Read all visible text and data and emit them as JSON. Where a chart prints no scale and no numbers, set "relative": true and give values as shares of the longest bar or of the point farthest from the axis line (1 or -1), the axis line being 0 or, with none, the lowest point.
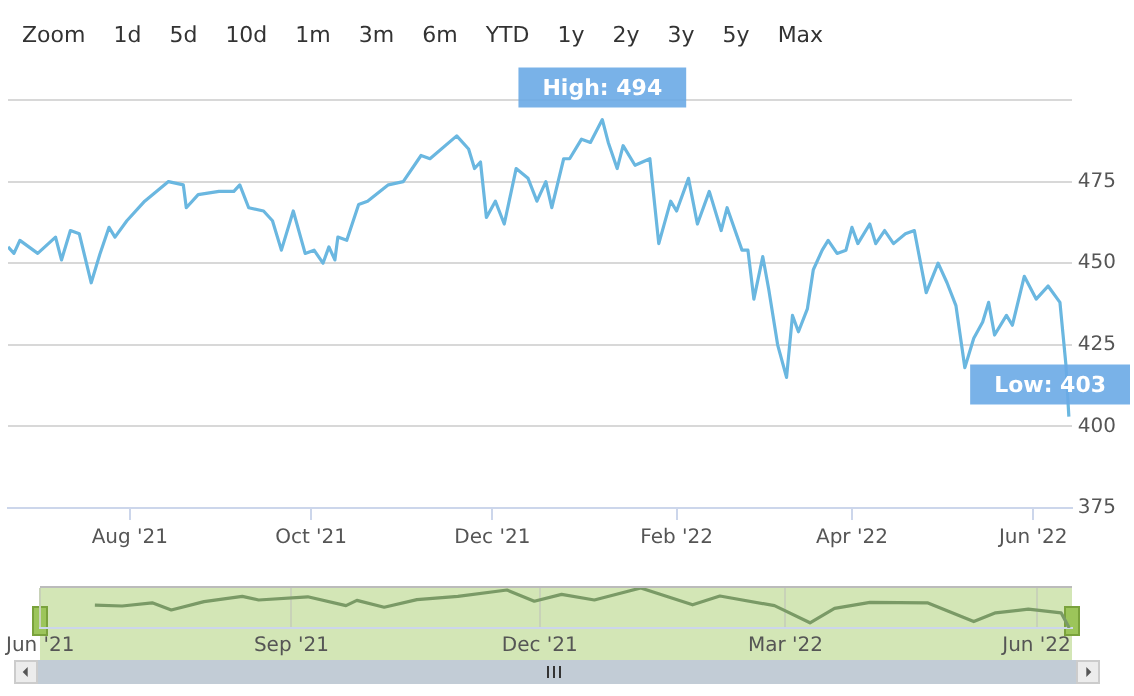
{
  "chart_data": [
    {
      "type": "line",
      "x": [
        "2021-06-21",
        "2021-06-23",
        "2021-06-25",
        "2021-07-01",
        "2021-07-07",
        "2021-07-09",
        "2021-07-12",
        "2021-07-15",
        "2021-07-19",
        "2021-07-22",
        "2021-07-25",
        "2021-07-27",
        "2021-07-31",
        "2021-08-06",
        "2021-08-14",
        "2021-08-19",
        "2021-08-20",
        "2021-08-24",
        "2021-08-31",
        "2021-09-05",
        "2021-09-07",
        "2021-09-10",
        "2021-09-15",
        "2021-09-18",
        "2021-09-21",
        "2021-09-25",
        "2021-09-29",
        "2021-10-02",
        "2021-10-05",
        "2021-10-07",
        "2021-10-09",
        "2021-10-10",
        "2021-10-13",
        "2021-10-17",
        "2021-10-20",
        "2021-10-27",
        "2021-11-01",
        "2021-11-07",
        "2021-11-10",
        "2021-11-19",
        "2021-11-23",
        "2021-11-25",
        "2021-11-27",
        "2021-11-29",
        "2021-12-02",
        "2021-12-05",
        "2021-12-09",
        "2021-12-13",
        "2021-12-16",
        "2021-12-19",
        "2021-12-21",
        "2021-12-25",
        "2021-12-27",
        "2021-12-31",
        "2022-01-03",
        "2022-01-07",
        "2022-01-09",
        "2022-01-12",
        "2022-01-14",
        "2022-01-18",
        "2022-01-23",
        "2022-01-26",
        "2022-01-30",
        "2022-02-01",
        "2022-02-05",
        "2022-02-08",
        "2022-02-12",
        "2022-02-16",
        "2022-02-18",
        "2022-02-23",
        "2022-02-25",
        "2022-02-27",
        "2022-03-02",
        "2022-03-04",
        "2022-03-07",
        "2022-03-10",
        "2022-03-12",
        "2022-03-14",
        "2022-03-17",
        "2022-03-19",
        "2022-03-22",
        "2022-03-24",
        "2022-03-27",
        "2022-03-30",
        "2022-04-01",
        "2022-04-03",
        "2022-04-07",
        "2022-04-09",
        "2022-04-12",
        "2022-04-15",
        "2022-04-19",
        "2022-04-22",
        "2022-04-26",
        "2022-04-30",
        "2022-05-03",
        "2022-05-06",
        "2022-05-09",
        "2022-05-12",
        "2022-05-15",
        "2022-05-17",
        "2022-05-19",
        "2022-05-23",
        "2022-05-25",
        "2022-05-29",
        "2022-06-02",
        "2022-06-06",
        "2022-06-10",
        "2022-06-12",
        "2022-06-13"
      ],
      "series": [
        {
          "color": "#6ab7e0",
          "values": [
            455,
            453,
            457,
            453,
            458,
            451,
            460,
            459,
            444,
            453,
            461,
            458,
            463,
            469,
            475,
            474,
            467,
            471,
            472,
            472,
            474,
            467,
            466,
            463,
            454,
            466,
            453,
            454,
            450,
            455,
            451,
            458,
            457,
            468,
            469,
            474,
            475,
            483,
            482,
            489,
            485,
            479,
            481,
            464,
            469,
            462,
            479,
            476,
            469,
            475,
            467,
            482,
            482,
            488,
            487,
            494,
            487,
            479,
            486,
            480,
            482,
            456,
            469,
            466,
            476,
            462,
            472,
            460,
            467,
            454,
            454,
            439,
            452,
            442,
            425,
            415,
            434,
            429,
            436,
            448,
            454,
            457,
            453,
            454,
            461,
            456,
            462,
            456,
            460,
            456,
            459,
            460,
            441,
            450,
            444,
            437,
            418,
            427,
            432,
            438,
            428,
            434,
            431,
            446,
            439,
            443,
            438,
            419,
            403
          ]
        }
      ],
      "xlim": [
        "2021-06-21",
        "2022-06-14"
      ],
      "xticks": [
        {
          "value": "2021-08-01",
          "label": "Aug '21"
        },
        {
          "value": "2021-10-01",
          "label": "Oct '21"
        },
        {
          "value": "2021-12-01",
          "label": "Dec '21"
        },
        {
          "value": "2022-02-01",
          "label": "Feb '22"
        },
        {
          "value": "2022-04-01",
          "label": "Apr '22"
        },
        {
          "value": "2022-06-01",
          "label": "Jun '22"
        }
      ],
      "ylim": [
        375,
        500
      ],
      "yticks": [
        375,
        400,
        425,
        450,
        475,
        {
          "value": 500,
          "label": null
        }
      ],
      "grid": "y",
      "marker": "none",
      "line_style": "solid",
      "annotations": [
        "Zoom",
        "1d",
        "5d",
        "10d",
        "1m",
        "3m",
        "6m",
        "YTD",
        "1y",
        "2y",
        "3y",
        "5y",
        "Max",
        {
          "text": "High: 494",
          "x": "2022-01-07",
          "y": 494
        },
        {
          "text": "Low: 403",
          "x": "2022-06-13",
          "y": 403
        }
      ]
    },
    {
      "type": "line",
      "relative": true,
      "tick_labels": "x",
      "marker": "none",
      "x": [
        "2021-06-21",
        "2021-07-01",
        "2021-07-12",
        "2021-07-19",
        "2021-07-31",
        "2021-08-14",
        "2021-08-20",
        "2021-09-07",
        "2021-09-21",
        "2021-09-25",
        "2021-10-05",
        "2021-10-17",
        "2021-11-01",
        "2021-11-19",
        "2021-11-29",
        "2021-12-09",
        "2021-12-21",
        "2022-01-07",
        "2022-01-26",
        "2022-02-05",
        "2022-02-25",
        "2022-03-10",
        "2022-03-19",
        "2022-04-01",
        "2022-04-22",
        "2022-05-09",
        "2022-05-17",
        "2022-05-29",
        "2022-06-10",
        "2022-06-13"
      ],
      "series": [
        {
          "color": "#7a9a66",
          "values": [
            0.57,
            0.55,
            0.63,
            0.45,
            0.66,
            0.79,
            0.7,
            0.78,
            0.56,
            0.69,
            0.52,
            0.71,
            0.79,
            0.95,
            0.67,
            0.84,
            0.7,
            1,
            0.58,
            0.8,
            0.56,
            0.13,
            0.49,
            0.64,
            0.63,
            0.16,
            0.38,
            0.47,
            0.38,
            0
          ]
        }
      ],
      "xlim": [
        "2021-06-01",
        "2022-06-14"
      ],
      "xticks": [
        {
          "value": "2021-06-01",
          "label": "Jun '21"
        },
        {
          "value": "2021-09-01",
          "label": "Sep '21"
        },
        {
          "value": "2021-12-01",
          "label": "Dec '21"
        },
        {
          "value": "2022-03-01",
          "label": "Mar '22"
        },
        {
          "value": "2022-06-01",
          "label": "Jun '22"
        }
      ],
      "grid": "x"
    }
  ]
}
